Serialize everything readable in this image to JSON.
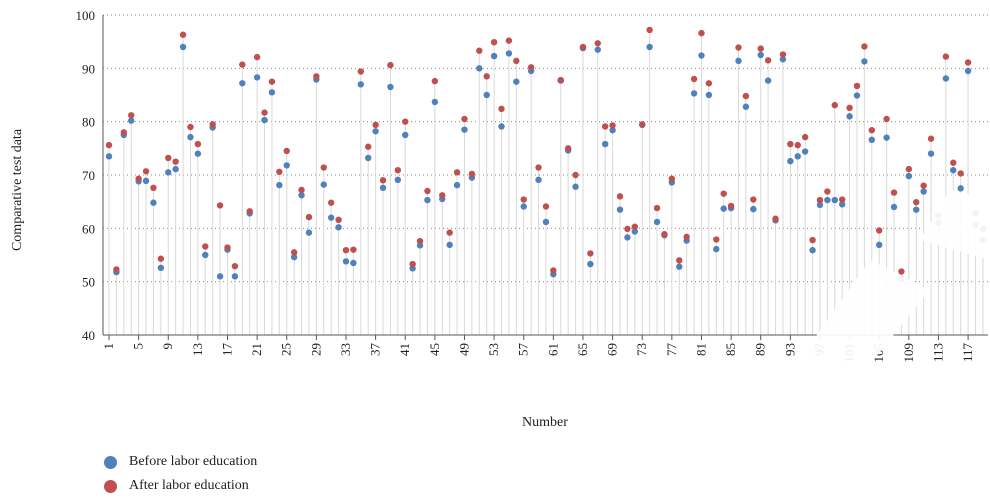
{
  "chart_data": {
    "type": "scatter",
    "title": "",
    "xlabel": "Number",
    "ylabel": "Comparative test data",
    "ylim": [
      40,
      100
    ],
    "yticks": [
      40,
      50,
      60,
      70,
      80,
      90,
      100
    ],
    "xlim": [
      1,
      120
    ],
    "xticks": [
      1,
      5,
      9,
      13,
      17,
      21,
      25,
      29,
      33,
      37,
      41,
      45,
      49,
      53,
      57,
      61,
      65,
      69,
      73,
      77,
      81,
      85,
      89,
      93,
      97,
      101,
      105,
      109,
      113,
      117
    ],
    "grid": "horizontal-dotted",
    "legend_position": "bottom-left",
    "series": [
      {
        "name": "Before labor education",
        "color": "#4f81bd",
        "values": [
          73.5,
          51.8,
          77.5,
          80.2,
          68.8,
          68.9,
          64.8,
          52.6,
          70.5,
          71.1,
          94,
          77.1,
          74,
          55,
          78.9,
          51,
          56,
          51,
          87.2,
          62.8,
          88.3,
          80.3,
          85.5,
          68.1,
          71.8,
          54.6,
          66.2,
          59.2,
          87.9,
          68.2,
          62,
          60.2,
          53.8,
          53.5,
          87,
          73.2,
          78.2,
          67.6,
          86.5,
          69.1,
          77.5,
          52.5,
          56.8,
          65.3,
          83.7,
          65.5,
          56.9,
          68.1,
          78.5,
          69.5,
          90,
          85,
          92.3,
          79.1,
          92.8,
          87.5,
          64.1,
          89.5,
          69.1,
          61.2,
          51.4,
          87.7,
          74.6,
          67.8,
          93.8,
          53.3,
          93.5,
          75.8,
          78.4,
          63.5,
          58.3,
          59.4,
          79.4,
          94,
          61.2,
          58.7,
          68.6,
          52.8,
          57.7,
          85.3,
          92.4,
          85,
          56.1,
          63.7,
          63.8,
          91.4,
          82.8,
          63.6,
          92.5,
          87.7,
          61.5,
          91.7,
          72.6,
          73.5,
          74.4,
          55.9,
          64.4,
          65.3,
          65.3,
          64.5,
          81,
          84.9,
          91.3,
          76.6,
          56.9,
          77,
          64,
          50.5,
          69.8,
          63.5,
          66.9,
          74,
          61.1,
          88.1,
          70.9,
          67.5,
          89.5,
          60.6,
          57.8
        ]
      },
      {
        "name": "After labor education",
        "color": "#c0504d",
        "values": [
          75.6,
          52.3,
          78,
          81.2,
          69.3,
          70.7,
          67.6,
          54.3,
          73.2,
          72.5,
          96.3,
          79,
          75.8,
          56.6,
          79.5,
          64.3,
          56.4,
          52.9,
          90.7,
          63.2,
          92.1,
          81.7,
          87.5,
          70.6,
          74.5,
          55.5,
          67.2,
          62.1,
          88.5,
          71.4,
          64.8,
          61.6,
          55.9,
          56,
          89.4,
          75.3,
          79.4,
          69,
          90.6,
          70.9,
          80,
          53.3,
          57.6,
          67,
          87.6,
          66.2,
          59.2,
          70.5,
          80.5,
          70.2,
          93.3,
          88.5,
          94.9,
          82.4,
          95.2,
          91.4,
          65.4,
          90.2,
          71.4,
          64.1,
          52.1,
          87.8,
          75,
          70,
          94,
          55.3,
          94.7,
          79.1,
          79.3,
          66,
          59.9,
          60.3,
          79.5,
          97.2,
          63.8,
          58.9,
          69.3,
          54,
          58.4,
          88,
          96.6,
          87.2,
          57.9,
          66.5,
          64.2,
          93.9,
          84.8,
          65.4,
          93.7,
          91.5,
          61.8,
          92.6,
          75.8,
          75.6,
          77.1,
          57.8,
          65.3,
          66.9,
          83.1,
          65.4,
          82.6,
          86.7,
          94.1,
          78.4,
          59.6,
          80.5,
          66.7,
          51.9,
          71.1,
          64.9,
          68,
          76.8,
          62.4,
          92.2,
          72.3,
          70.3,
          91.1,
          62.8,
          59.9
        ]
      }
    ]
  }
}
